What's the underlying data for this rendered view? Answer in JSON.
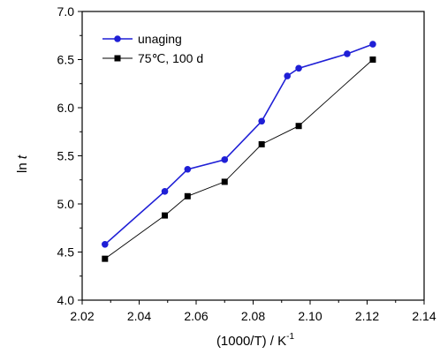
{
  "chart_data": {
    "type": "line",
    "xlabel_main": "(1000/T)  / K",
    "xlabel_sup": "-1",
    "ylabel_main": "ln ",
    "ylabel_italic": "t",
    "xlim": [
      2.02,
      2.14
    ],
    "ylim": [
      4.0,
      7.0
    ],
    "x_ticks": [
      "2.02",
      "2.04",
      "2.06",
      "2.08",
      "2.10",
      "2.12",
      "2.14"
    ],
    "y_ticks": [
      "4.0",
      "4.5",
      "5.0",
      "5.5",
      "6.0",
      "6.5",
      "7.0"
    ],
    "x_tick_values": [
      2.02,
      2.04,
      2.06,
      2.08,
      2.1,
      2.12,
      2.14
    ],
    "y_tick_values": [
      4.0,
      4.5,
      5.0,
      5.5,
      6.0,
      6.5,
      7.0
    ],
    "legend_position": "top-left",
    "grid": false,
    "series": [
      {
        "name": "unaging",
        "color": "#1f1fd6",
        "marker": "circle",
        "x": [
          2.028,
          2.049,
          2.057,
          2.07,
          2.083,
          2.092,
          2.096,
          2.113,
          2.122
        ],
        "y": [
          4.58,
          5.13,
          5.36,
          5.46,
          5.86,
          6.33,
          6.41,
          6.56,
          6.66
        ]
      },
      {
        "name": "75℃, 100 d",
        "color": "#000000",
        "marker": "square",
        "x": [
          2.028,
          2.049,
          2.057,
          2.07,
          2.083,
          2.096,
          2.122
        ],
        "y": [
          4.43,
          4.88,
          5.08,
          5.23,
          5.62,
          5.81,
          6.5
        ]
      }
    ]
  }
}
